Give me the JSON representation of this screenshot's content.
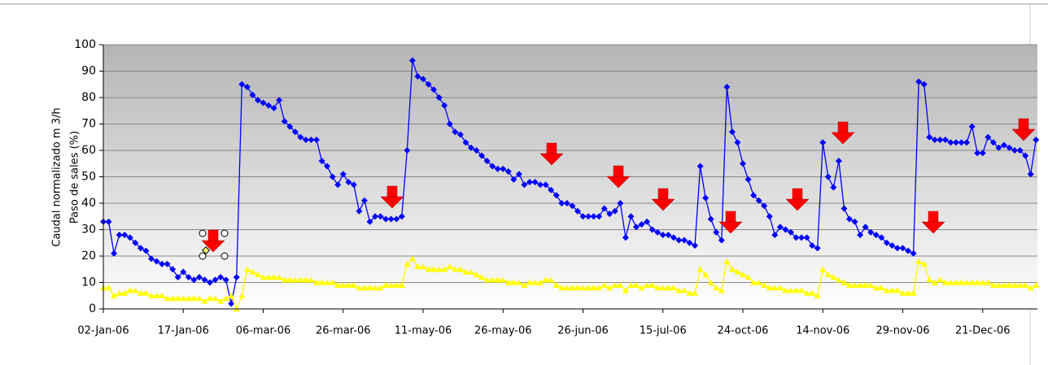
{
  "chart_data": {
    "type": "line",
    "y_label_lines": [
      "Caudal normalizado m 3/h",
      "Paso de sales (%)"
    ],
    "categories": [
      "02-Jan-06",
      null,
      null,
      null,
      null,
      null,
      null,
      null,
      null,
      null,
      null,
      null,
      null,
      null,
      null,
      "17-Jan-06",
      null,
      null,
      null,
      null,
      null,
      null,
      null,
      null,
      null,
      null,
      null,
      null,
      null,
      null,
      "06-mar-06",
      null,
      null,
      null,
      null,
      null,
      null,
      null,
      null,
      null,
      null,
      null,
      null,
      null,
      null,
      "26-mar-06",
      null,
      null,
      null,
      null,
      null,
      null,
      null,
      null,
      null,
      null,
      null,
      null,
      null,
      null,
      "11-may-06",
      null,
      null,
      null,
      null,
      null,
      null,
      null,
      null,
      null,
      null,
      null,
      null,
      null,
      null,
      "26-may-06",
      null,
      null,
      null,
      null,
      null,
      null,
      null,
      null,
      null,
      null,
      null,
      null,
      null,
      null,
      "26-jun-06",
      null,
      null,
      null,
      null,
      null,
      null,
      null,
      null,
      null,
      null,
      null,
      null,
      null,
      null,
      "15-jul-06",
      null,
      null,
      null,
      null,
      null,
      null,
      null,
      null,
      null,
      null,
      null,
      null,
      null,
      null,
      "24-oct-06",
      null,
      null,
      null,
      null,
      null,
      null,
      null,
      null,
      null,
      null,
      null,
      null,
      null,
      null,
      "14-nov-06",
      null,
      null,
      null,
      null,
      null,
      null,
      null,
      null,
      null,
      null,
      null,
      null,
      null,
      null,
      "29-nov-06",
      null,
      null,
      null,
      null,
      null,
      null,
      null,
      null,
      null,
      null,
      null,
      null,
      null,
      null,
      "21-Dec-06",
      null,
      null,
      null,
      null,
      null,
      null,
      null,
      null,
      null,
      null
    ],
    "series": [
      {
        "color": "#0000ff",
        "marker": "diamond",
        "values": [
          33,
          33,
          21,
          28,
          28,
          27,
          25,
          23,
          22,
          19,
          18,
          17,
          17,
          15,
          12,
          14,
          12,
          11,
          12,
          11,
          10,
          11,
          12,
          11,
          2,
          12,
          85,
          84,
          81,
          79,
          78,
          77,
          76,
          79,
          71,
          69,
          67,
          65,
          64,
          64,
          64,
          56,
          54,
          50,
          47,
          51,
          48,
          47,
          37,
          41,
          33,
          35,
          35,
          34,
          34,
          34,
          35,
          60,
          94,
          88,
          87,
          85,
          83,
          80,
          77,
          70,
          67,
          66,
          63,
          61,
          60,
          58,
          56,
          54,
          53,
          53,
          52,
          49,
          51,
          47,
          48,
          48,
          47,
          47,
          45,
          43,
          40,
          40,
          39,
          37,
          35,
          35,
          35,
          35,
          38,
          36,
          37,
          40,
          27,
          35,
          31,
          32,
          33,
          30,
          29,
          28,
          28,
          27,
          26,
          26,
          25,
          24,
          54,
          42,
          34,
          29,
          26,
          84,
          67,
          63,
          55,
          49,
          43,
          41,
          39,
          35,
          28,
          31,
          30,
          29,
          27,
          27,
          27,
          24,
          23,
          63,
          50,
          46,
          56,
          38,
          34,
          33,
          28,
          31,
          29,
          28,
          27,
          25,
          24,
          23,
          23,
          22,
          21,
          86,
          85,
          65,
          64,
          64,
          64,
          63,
          63,
          63,
          63,
          69,
          59,
          59,
          65,
          63,
          61,
          62,
          61,
          60,
          60,
          58,
          51,
          64
        ]
      },
      {
        "color": "#ffff00",
        "marker": "triangle",
        "values": [
          8,
          8,
          5,
          6,
          6,
          7,
          7,
          6,
          6,
          5,
          5,
          5,
          4,
          4,
          4,
          4,
          4,
          4,
          4,
          3,
          4,
          4,
          3,
          4,
          5,
          0,
          5,
          15,
          14,
          13,
          12,
          12,
          12,
          12,
          11,
          11,
          11,
          11,
          11,
          11,
          10,
          10,
          10,
          10,
          9,
          9,
          9,
          9,
          8,
          8,
          8,
          8,
          8,
          9,
          9,
          9,
          9,
          17,
          19,
          16,
          16,
          15,
          15,
          15,
          15,
          16,
          15,
          15,
          14,
          14,
          13,
          12,
          11,
          11,
          11,
          11,
          10,
          10,
          10,
          9,
          10,
          10,
          10,
          11,
          11,
          9,
          8,
          8,
          8,
          8,
          8,
          8,
          8,
          8,
          9,
          8,
          9,
          9,
          7,
          9,
          9,
          8,
          9,
          9,
          8,
          8,
          8,
          8,
          7,
          7,
          6,
          6,
          15,
          13,
          10,
          8,
          7,
          18,
          15,
          14,
          13,
          12,
          10,
          10,
          9,
          8,
          8,
          8,
          7,
          7,
          7,
          7,
          6,
          6,
          5,
          15,
          13,
          12,
          11,
          10,
          9,
          9,
          9,
          9,
          9,
          8,
          8,
          7,
          7,
          7,
          6,
          6,
          6,
          18,
          17,
          11,
          10,
          11,
          10,
          10,
          10,
          10,
          10,
          10,
          10,
          10,
          10,
          9,
          9,
          9,
          9,
          9,
          9,
          9,
          8,
          9
        ]
      }
    ],
    "ylim": [
      0,
      100
    ],
    "yticks": [
      0,
      10,
      20,
      30,
      40,
      50,
      60,
      70,
      80,
      90,
      100
    ],
    "grid": true
  }
}
